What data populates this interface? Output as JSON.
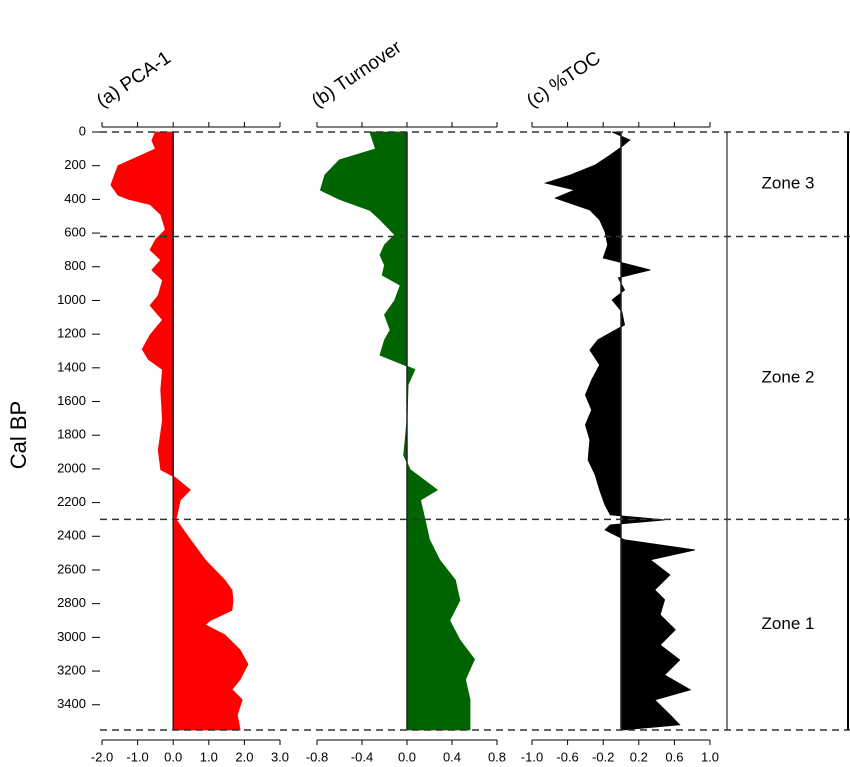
{
  "chart_data": {
    "type": "stratigraphic",
    "y_label": "Cal BP",
    "ylim": [
      0,
      3550
    ],
    "yticks": [
      0,
      200,
      400,
      600,
      800,
      1000,
      1200,
      1400,
      1600,
      1800,
      2000,
      2200,
      2400,
      2600,
      2800,
      3000,
      3200,
      3400
    ],
    "panels": [
      {
        "title": "(a) PCA-1",
        "color": "#ff0000",
        "xlim": [
          -2,
          3
        ],
        "xticks": [
          {
            "value": -2,
            "label": "-2.0"
          },
          {
            "value": -1,
            "label": "-1.0"
          },
          {
            "value": 0,
            "label": "0.0"
          },
          {
            "value": 1,
            "label": "1.0"
          },
          {
            "value": 2,
            "label": "2.0"
          },
          {
            "value": 3,
            "label": "3.0"
          }
        ],
        "depth": [
          0,
          50,
          100,
          200,
          285,
          315,
          375,
          400,
          430,
          490,
          580,
          640,
          700,
          760,
          820,
          880,
          970,
          1030,
          1115,
          1205,
          1290,
          1350,
          1410,
          1530,
          1710,
          1890,
          2005,
          2050,
          2125,
          2185,
          2300,
          2420,
          2540,
          2660,
          2720,
          2780,
          2840,
          2900,
          2925,
          2985,
          3075,
          3160,
          3250,
          3310,
          3370,
          3460,
          3550
        ],
        "values": [
          -0.5,
          -0.6,
          -0.5,
          -1.55,
          -1.7,
          -1.75,
          -1.55,
          -1.25,
          -0.65,
          -0.35,
          -0.22,
          -0.5,
          -0.65,
          -0.35,
          -0.6,
          -0.3,
          -0.42,
          -0.65,
          -0.3,
          -0.65,
          -0.87,
          -0.7,
          -0.3,
          -0.35,
          -0.3,
          -0.42,
          -0.35,
          0.05,
          0.48,
          0.2,
          0.08,
          0.48,
          0.9,
          1.45,
          1.65,
          1.68,
          1.65,
          1.04,
          0.9,
          1.45,
          1.88,
          2.1,
          1.88,
          1.65,
          1.94,
          1.8,
          1.88
        ]
      },
      {
        "title": "(b) Turnover",
        "color": "#006400",
        "xlim": [
          -0.8,
          0.8
        ],
        "xticks": [
          -0.8,
          -0.4,
          {
            "value": 0,
            "label": "0.0"
          },
          0.4,
          0.8
        ],
        "depth": [
          0,
          100,
          165,
          255,
          345,
          400,
          465,
          520,
          610,
          670,
          730,
          790,
          850,
          910,
          1000,
          1085,
          1175,
          1235,
          1325,
          1385,
          1410,
          1500,
          1710,
          1920,
          2005,
          2125,
          2185,
          2300,
          2420,
          2540,
          2660,
          2780,
          2900,
          3015,
          3130,
          3250,
          3370,
          3550
        ],
        "values": [
          -0.33,
          -0.28,
          -0.6,
          -0.73,
          -0.77,
          -0.6,
          -0.33,
          -0.24,
          -0.11,
          -0.2,
          -0.24,
          -0.2,
          -0.22,
          -0.06,
          -0.11,
          -0.2,
          -0.15,
          -0.2,
          -0.24,
          -0.02,
          0.07,
          0.01,
          0,
          -0.03,
          0.03,
          0.27,
          0.12,
          0.16,
          0.2,
          0.29,
          0.43,
          0.47,
          0.38,
          0.47,
          0.6,
          0.52,
          0.56,
          0.56
        ]
      },
      {
        "title": "(c) %TOC",
        "color": "#000000",
        "xlim": [
          -1,
          1
        ],
        "xticks": [
          {
            "value": -1,
            "label": "-1.0"
          },
          -0.6,
          -0.2,
          0.2,
          0.6,
          {
            "value": 1,
            "label": "1.0"
          }
        ],
        "depth": [
          0,
          47,
          95,
          136,
          196,
          255,
          303,
          344,
          392,
          463,
          522,
          593,
          671,
          748,
          819,
          866,
          938,
          997,
          1068,
          1145,
          1234,
          1294,
          1383,
          1472,
          1561,
          1650,
          1739,
          1828,
          1947,
          2036,
          2125,
          2214,
          2273,
          2303,
          2332,
          2362,
          2421,
          2481,
          2540,
          2629,
          2718,
          2777,
          2866,
          2955,
          3045,
          3134,
          3223,
          3312,
          3371,
          3460,
          3519,
          3549
        ],
        "values": [
          -0.1,
          0.1,
          -0.01,
          -0.12,
          -0.29,
          -0.57,
          -0.85,
          -0.52,
          -0.74,
          -0.35,
          -0.24,
          -0.18,
          -0.15,
          -0.2,
          0.33,
          -0.03,
          0.04,
          -0.1,
          0.01,
          0.04,
          -0.26,
          -0.35,
          -0.24,
          -0.33,
          -0.4,
          -0.33,
          -0.4,
          -0.35,
          -0.37,
          -0.29,
          -0.24,
          -0.18,
          -0.12,
          0.49,
          -0.12,
          -0.18,
          0.04,
          0.83,
          0.33,
          0.55,
          0.38,
          0.49,
          0.44,
          0.61,
          0.44,
          0.66,
          0.49,
          0.78,
          0.38,
          0.55,
          0.66,
          0.04
        ]
      }
    ],
    "zone_boundaries": [
      0,
      620,
      2300,
      3550
    ],
    "zones": [
      "Zone 3",
      "Zone 2",
      "Zone 1"
    ]
  }
}
